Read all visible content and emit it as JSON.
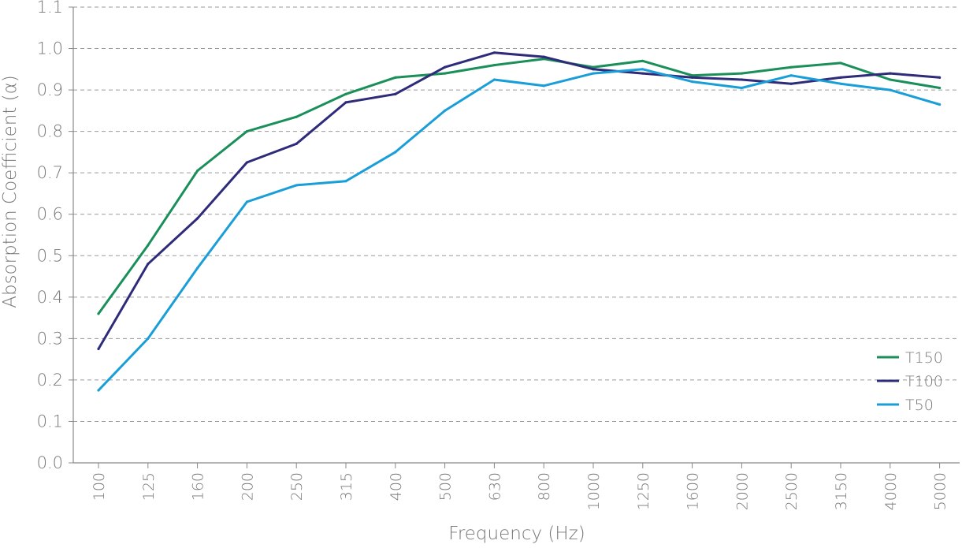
{
  "chart_data": {
    "type": "line",
    "title": "",
    "xlabel": "Frequency (Hz)",
    "ylabel": "Absorption Coefficient (α)",
    "ylim": [
      0.0,
      1.1
    ],
    "yticks": [
      "0.0",
      "0.1",
      "0.2",
      "0.3",
      "0.4",
      "0.5",
      "0.6",
      "0.7",
      "0.8",
      "0.9",
      "1.0",
      "1.1"
    ],
    "categories": [
      "100",
      "125",
      "160",
      "200",
      "250",
      "315",
      "400",
      "500",
      "630",
      "800",
      "1000",
      "1250",
      "1600",
      "2000",
      "2500",
      "3150",
      "4000",
      "5000"
    ],
    "grid": true,
    "legend_position": "bottom-right",
    "series": [
      {
        "name": "T150",
        "color": "#1a8f5a",
        "values": [
          0.36,
          0.525,
          0.705,
          0.8,
          0.835,
          0.89,
          0.93,
          0.94,
          0.96,
          0.975,
          0.955,
          0.97,
          0.935,
          0.94,
          0.955,
          0.965,
          0.925,
          0.905
        ]
      },
      {
        "name": "T100",
        "color": "#2e2b7a",
        "values": [
          0.275,
          0.48,
          0.59,
          0.725,
          0.77,
          0.87,
          0.89,
          0.955,
          0.99,
          0.98,
          0.95,
          0.94,
          0.93,
          0.925,
          0.915,
          0.93,
          0.94,
          0.93
        ]
      },
      {
        "name": "T50",
        "color": "#1a9ed8",
        "values": [
          0.175,
          0.3,
          0.47,
          0.63,
          0.67,
          0.68,
          0.75,
          0.85,
          0.925,
          0.91,
          0.94,
          0.95,
          0.92,
          0.905,
          0.935,
          0.915,
          0.9,
          0.865
        ]
      }
    ]
  }
}
